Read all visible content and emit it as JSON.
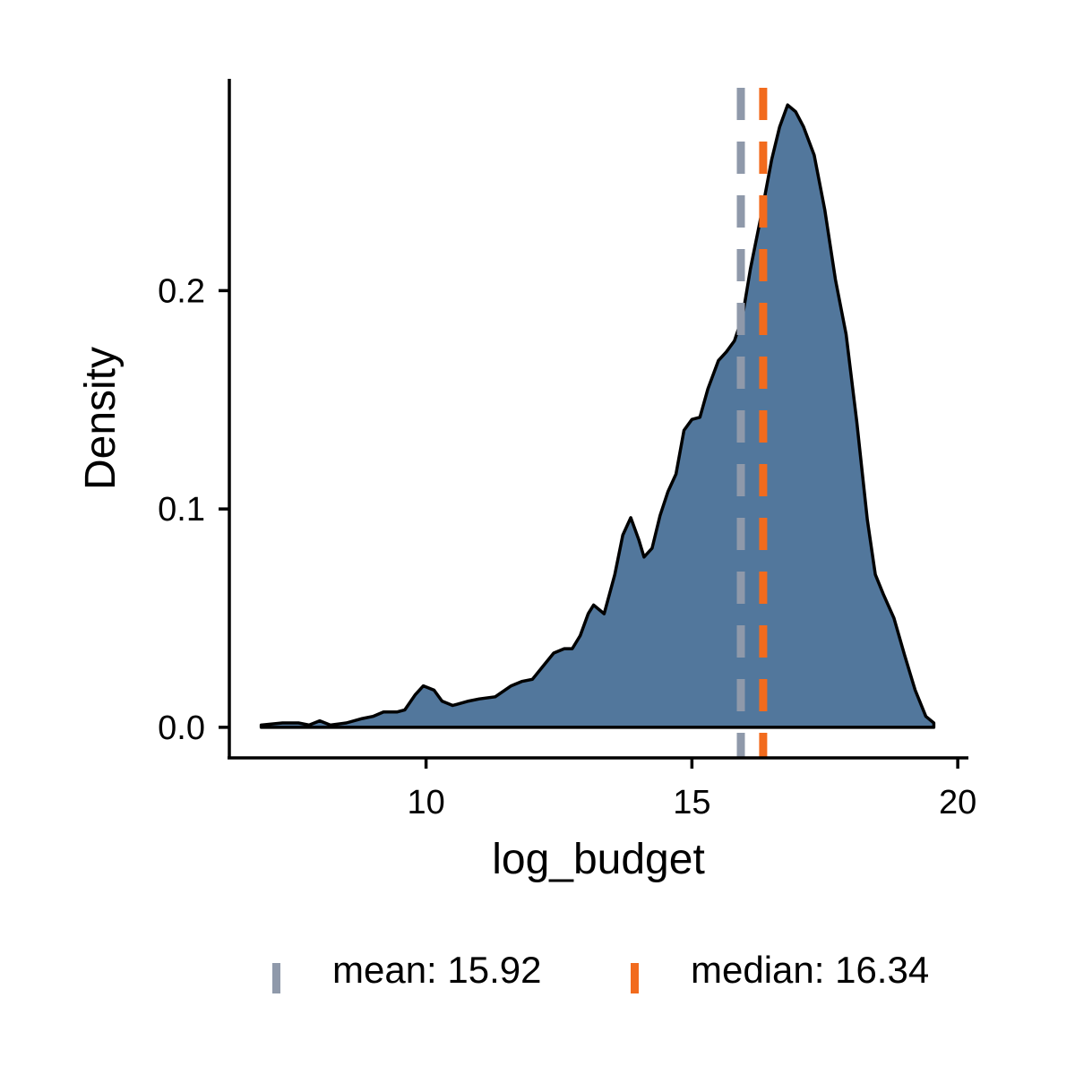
{
  "chart_data": {
    "type": "area",
    "title": "",
    "xlabel": "log_budget",
    "ylabel": "Density",
    "xlim": [
      6.3,
      20.2
    ],
    "ylim": [
      -0.014,
      0.297
    ],
    "x_ticks": [
      {
        "value": 10,
        "label": "10"
      },
      {
        "value": 15,
        "label": "15"
      },
      {
        "value": 20,
        "label": "20"
      }
    ],
    "y_ticks": [
      {
        "value": 0.0,
        "label": "0.0"
      },
      {
        "value": 0.1,
        "label": "0.1"
      },
      {
        "value": 0.2,
        "label": "0.2"
      }
    ],
    "grid": false,
    "fill_color": "#52779c",
    "line_color": "#000000",
    "density": [
      [
        6.9,
        0.001
      ],
      [
        7.3,
        0.002
      ],
      [
        7.6,
        0.002
      ],
      [
        7.8,
        0.001
      ],
      [
        8.0,
        0.003
      ],
      [
        8.2,
        0.001
      ],
      [
        8.5,
        0.002
      ],
      [
        8.8,
        0.004
      ],
      [
        9.0,
        0.005
      ],
      [
        9.2,
        0.007
      ],
      [
        9.45,
        0.007
      ],
      [
        9.6,
        0.008
      ],
      [
        9.8,
        0.015
      ],
      [
        9.95,
        0.019
      ],
      [
        10.15,
        0.017
      ],
      [
        10.3,
        0.012
      ],
      [
        10.5,
        0.01
      ],
      [
        10.8,
        0.012
      ],
      [
        11.0,
        0.013
      ],
      [
        11.3,
        0.014
      ],
      [
        11.6,
        0.019
      ],
      [
        11.8,
        0.021
      ],
      [
        12.0,
        0.022
      ],
      [
        12.2,
        0.028
      ],
      [
        12.4,
        0.034
      ],
      [
        12.6,
        0.036
      ],
      [
        12.75,
        0.036
      ],
      [
        12.9,
        0.042
      ],
      [
        13.05,
        0.052
      ],
      [
        13.15,
        0.056
      ],
      [
        13.35,
        0.052
      ],
      [
        13.55,
        0.07
      ],
      [
        13.7,
        0.088
      ],
      [
        13.85,
        0.096
      ],
      [
        14.0,
        0.086
      ],
      [
        14.1,
        0.078
      ],
      [
        14.25,
        0.082
      ],
      [
        14.4,
        0.097
      ],
      [
        14.55,
        0.108
      ],
      [
        14.7,
        0.116
      ],
      [
        14.85,
        0.136
      ],
      [
        15.0,
        0.141
      ],
      [
        15.15,
        0.142
      ],
      [
        15.3,
        0.155
      ],
      [
        15.5,
        0.168
      ],
      [
        15.65,
        0.172
      ],
      [
        15.8,
        0.177
      ],
      [
        15.95,
        0.188
      ],
      [
        16.1,
        0.21
      ],
      [
        16.3,
        0.234
      ],
      [
        16.5,
        0.26
      ],
      [
        16.65,
        0.275
      ],
      [
        16.8,
        0.285
      ],
      [
        16.95,
        0.282
      ],
      [
        17.1,
        0.275
      ],
      [
        17.3,
        0.262
      ],
      [
        17.5,
        0.237
      ],
      [
        17.7,
        0.205
      ],
      [
        17.9,
        0.18
      ],
      [
        18.1,
        0.14
      ],
      [
        18.3,
        0.095
      ],
      [
        18.45,
        0.07
      ],
      [
        18.6,
        0.061
      ],
      [
        18.8,
        0.05
      ],
      [
        19.0,
        0.033
      ],
      [
        19.2,
        0.017
      ],
      [
        19.4,
        0.005
      ],
      [
        19.55,
        0.002
      ]
    ],
    "vlines": [
      {
        "name": "mean",
        "value": 15.92,
        "color": "#8f99aa"
      },
      {
        "name": "median",
        "value": 16.34,
        "color": "#f26b1d"
      }
    ],
    "legend": {
      "position": "bottom",
      "items": [
        {
          "label": "mean: 15.92",
          "color": "#8f99aa"
        },
        {
          "label": "median: 16.34",
          "color": "#f26b1d"
        }
      ]
    }
  }
}
